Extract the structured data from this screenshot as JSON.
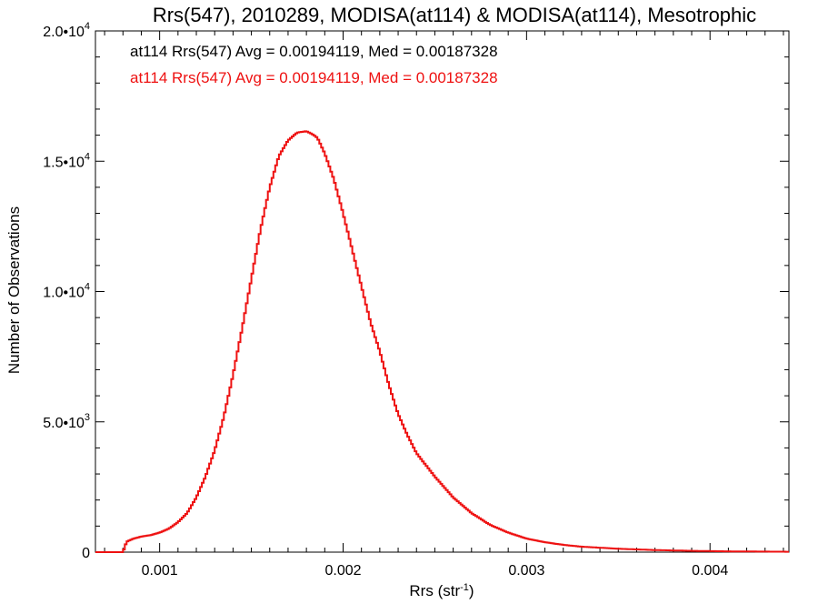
{
  "chart_data": {
    "type": "histogram",
    "title": "Rrs(547), 2010289, MODISA(at114) & MODISA(at114), Mesotrophic",
    "xlabel": "Rrs (str",
    "xlabel_sup": "-1",
    "xlabel_end": ")",
    "ylabel": "Number of Observations",
    "xlim": [
      0.00065,
      0.00443
    ],
    "ylim": [
      0,
      20000
    ],
    "x_ticks": [
      {
        "value": 0.001,
        "label": "0.001"
      },
      {
        "value": 0.002,
        "label": "0.002"
      },
      {
        "value": 0.003,
        "label": "0.003"
      },
      {
        "value": 0.004,
        "label": "0.004"
      }
    ],
    "y_ticks": [
      {
        "value": 0,
        "mant": "0",
        "exp": ""
      },
      {
        "value": 5000,
        "mant": "5.0•10",
        "exp": "3"
      },
      {
        "value": 10000,
        "mant": "1.0•10",
        "exp": "4"
      },
      {
        "value": 15000,
        "mant": "1.5•10",
        "exp": "4"
      },
      {
        "value": 20000,
        "mant": "2.0•10",
        "exp": "4"
      }
    ],
    "legend": [
      {
        "text": "at114 Rrs(547) Avg = 0.00194119, Med = 0.00187328",
        "color": "#000000"
      },
      {
        "text": "at114 Rrs(547) Avg = 0.00194119, Med = 0.00187328",
        "color": "#ee1111"
      }
    ],
    "series": [
      {
        "color": "#ee1111",
        "x": [
          0.00065,
          0.0008,
          0.00082,
          0.00085,
          0.0009,
          0.00095,
          0.001,
          0.00105,
          0.0011,
          0.00115,
          0.0012,
          0.00125,
          0.0013,
          0.00135,
          0.0014,
          0.00145,
          0.0015,
          0.00155,
          0.0016,
          0.00165,
          0.0017,
          0.00175,
          0.0018,
          0.00183,
          0.00186,
          0.0019,
          0.00195,
          0.002,
          0.00205,
          0.0021,
          0.00215,
          0.0022,
          0.00225,
          0.0023,
          0.00235,
          0.0024,
          0.0025,
          0.0026,
          0.0027,
          0.0028,
          0.0029,
          0.003,
          0.0031,
          0.0032,
          0.0033,
          0.0035,
          0.0037,
          0.0039,
          0.0041,
          0.0043,
          0.00443
        ],
        "y": [
          0,
          0,
          400,
          500,
          600,
          650,
          750,
          900,
          1150,
          1500,
          2100,
          2900,
          3900,
          5200,
          6800,
          8600,
          10500,
          12400,
          14000,
          15200,
          15800,
          16100,
          16150,
          16050,
          15900,
          15300,
          14300,
          13000,
          11600,
          10200,
          8800,
          7700,
          6400,
          5300,
          4500,
          3800,
          2900,
          2100,
          1500,
          1050,
          750,
          520,
          380,
          280,
          210,
          130,
          80,
          50,
          30,
          20,
          15
        ]
      }
    ]
  }
}
